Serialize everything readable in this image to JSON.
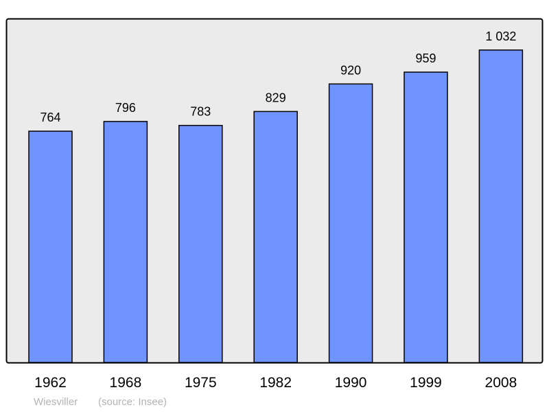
{
  "chart_data": {
    "type": "bar",
    "categories": [
      "1962",
      "1968",
      "1975",
      "1982",
      "1990",
      "1999",
      "2008"
    ],
    "values": [
      764,
      796,
      783,
      829,
      920,
      959,
      1032
    ],
    "data_labels": [
      "764",
      "796",
      "783",
      "829",
      "920",
      "959",
      "1 032"
    ],
    "title": "",
    "xlabel": "",
    "ylabel": "",
    "ylim": [
      0,
      1136
    ],
    "grid": false,
    "bar_color": "#7094ff",
    "background_color": "#ebebeb"
  },
  "footer": {
    "place": "Wiesviller",
    "source": "(source: Insee)"
  }
}
